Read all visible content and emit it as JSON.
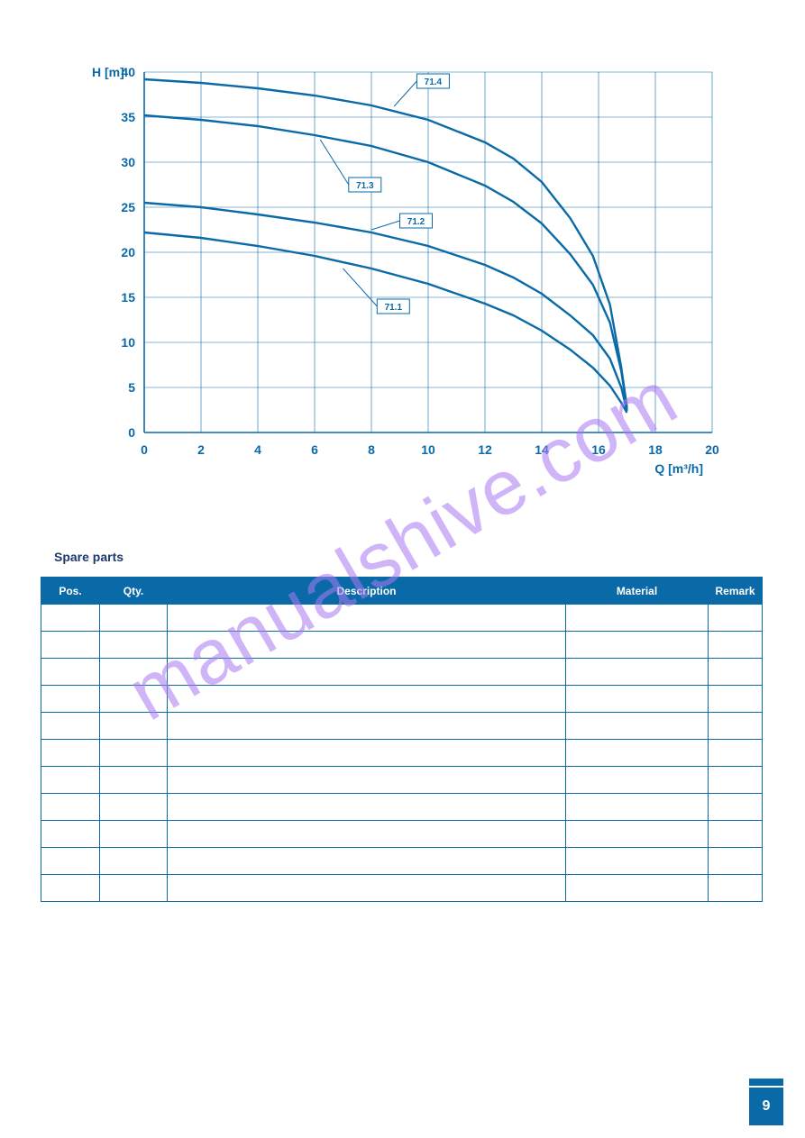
{
  "watermark": "manualshive.com",
  "chart": {
    "type": "line",
    "y_axis_title": "H [m]",
    "x_axis_title": "Q [m³/h]",
    "title_fontsize": 14,
    "tick_fontsize": 14,
    "line_color": "#0a6aa8",
    "grid_color": "#0a6aa8",
    "background_color": "#ffffff",
    "line_width": 2.4,
    "grid_width": 0.6,
    "xlim": [
      0,
      20
    ],
    "ylim": [
      0,
      40
    ],
    "xtick_step": 2,
    "ytick_step": 5,
    "xticks": [
      0,
      2,
      4,
      6,
      8,
      10,
      12,
      14,
      16,
      18,
      20
    ],
    "yticks": [
      0,
      5,
      10,
      15,
      20,
      25,
      30,
      35,
      40
    ],
    "series": [
      {
        "label": "71.1",
        "label_box": {
          "x": 8.2,
          "y": 14
        },
        "leader_to": {
          "x": 7.0,
          "y": 18.2
        },
        "points": [
          [
            0,
            22.2
          ],
          [
            2,
            21.6
          ],
          [
            4,
            20.7
          ],
          [
            6,
            19.6
          ],
          [
            8,
            18.2
          ],
          [
            10,
            16.5
          ],
          [
            12,
            14.3
          ],
          [
            13,
            13.0
          ],
          [
            14,
            11.3
          ],
          [
            15,
            9.2
          ],
          [
            15.8,
            7.2
          ],
          [
            16.4,
            5.2
          ],
          [
            16.8,
            3.3
          ],
          [
            17.0,
            2.2
          ]
        ]
      },
      {
        "label": "71.2",
        "label_box": {
          "x": 9.0,
          "y": 23.5
        },
        "leader_to": {
          "x": 8.0,
          "y": 22.5
        },
        "points": [
          [
            0,
            25.5
          ],
          [
            2,
            25.0
          ],
          [
            4,
            24.2
          ],
          [
            6,
            23.3
          ],
          [
            8,
            22.2
          ],
          [
            10,
            20.7
          ],
          [
            12,
            18.6
          ],
          [
            13,
            17.2
          ],
          [
            14,
            15.4
          ],
          [
            15,
            13.0
          ],
          [
            15.8,
            10.8
          ],
          [
            16.4,
            8.2
          ],
          [
            16.8,
            5.0
          ],
          [
            17.0,
            2.4
          ]
        ]
      },
      {
        "label": "71.3",
        "label_box": {
          "x": 7.2,
          "y": 27.5
        },
        "leader_to": {
          "x": 6.2,
          "y": 32.5
        },
        "points": [
          [
            0,
            35.2
          ],
          [
            2,
            34.7
          ],
          [
            4,
            34.0
          ],
          [
            6,
            33.0
          ],
          [
            8,
            31.8
          ],
          [
            10,
            30.0
          ],
          [
            12,
            27.4
          ],
          [
            13,
            25.6
          ],
          [
            14,
            23.2
          ],
          [
            15,
            19.8
          ],
          [
            15.8,
            16.4
          ],
          [
            16.4,
            12.2
          ],
          [
            16.8,
            6.8
          ],
          [
            17.0,
            2.6
          ]
        ]
      },
      {
        "label": "71.4",
        "label_box": {
          "x": 9.6,
          "y": 39
        },
        "leader_to": {
          "x": 8.8,
          "y": 36.2
        },
        "points": [
          [
            0,
            39.2
          ],
          [
            2,
            38.8
          ],
          [
            4,
            38.2
          ],
          [
            6,
            37.4
          ],
          [
            8,
            36.3
          ],
          [
            10,
            34.7
          ],
          [
            12,
            32.2
          ],
          [
            13,
            30.4
          ],
          [
            14,
            27.8
          ],
          [
            15,
            23.8
          ],
          [
            15.8,
            19.6
          ],
          [
            16.4,
            14.2
          ],
          [
            16.8,
            7.2
          ],
          [
            17.0,
            2.8
          ]
        ]
      }
    ]
  },
  "spare_parts": {
    "title": "Spare parts",
    "headers": {
      "pos": "Pos.",
      "qty": "Qty.",
      "desc": "Description",
      "material": "Material",
      "remark": "Remark"
    },
    "rows": [
      [
        "",
        "",
        "",
        "",
        ""
      ],
      [
        "",
        "",
        "",
        "",
        ""
      ],
      [
        "",
        "",
        "",
        "",
        ""
      ],
      [
        "",
        "",
        "",
        "",
        ""
      ],
      [
        "",
        "",
        "",
        "",
        ""
      ],
      [
        "",
        "",
        "",
        "",
        ""
      ],
      [
        "",
        "",
        "",
        "",
        ""
      ],
      [
        "",
        "",
        "",
        "",
        ""
      ],
      [
        "",
        "",
        "",
        "",
        ""
      ],
      [
        "",
        "",
        "",
        "",
        ""
      ],
      [
        "",
        "",
        "",
        "",
        ""
      ]
    ]
  },
  "page_number": "9"
}
